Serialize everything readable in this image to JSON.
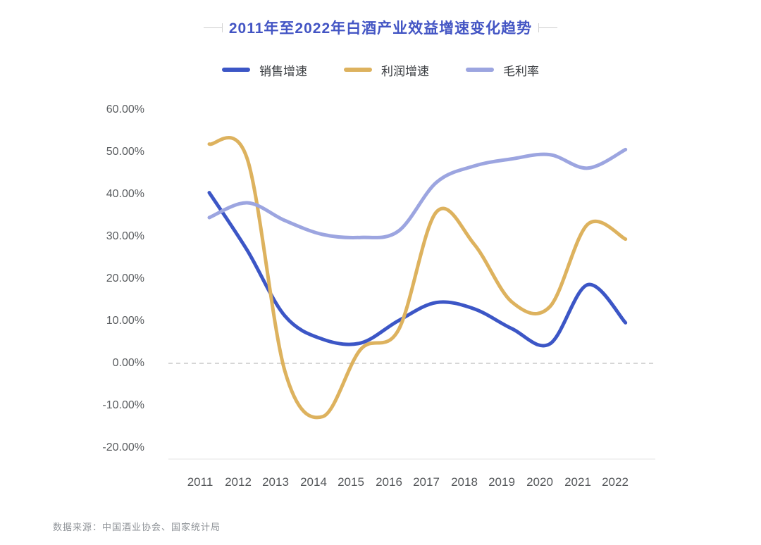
{
  "header": {
    "title": "2011年至2022年白酒产业效益增速变化趋势"
  },
  "chart_data": {
    "type": "line",
    "title": "2011年至2022年白酒产业效益增速变化趋势",
    "categories": [
      "2011",
      "2012",
      "2013",
      "2014",
      "2015",
      "2016",
      "2017",
      "2018",
      "2019",
      "2020",
      "2021",
      "2022"
    ],
    "series": [
      {
        "name": "销售增速",
        "color": "#3c56c6",
        "values": [
          40.4,
          26.8,
          11.2,
          5.7,
          4.8,
          10.1,
          14.4,
          12.9,
          8.2,
          4.6,
          18.6,
          9.6
        ]
      },
      {
        "name": "利润增速",
        "color": "#ddb25e",
        "values": [
          51.9,
          48.5,
          -1.9,
          -12.6,
          3.3,
          7.9,
          35.8,
          28.2,
          14.5,
          13.4,
          32.9,
          29.4
        ]
      },
      {
        "name": "毛利率",
        "color": "#9ca5e0",
        "values": [
          34.5,
          38.0,
          33.8,
          30.5,
          29.8,
          31.3,
          42.8,
          46.7,
          48.4,
          49.4,
          46.2,
          50.6
        ]
      }
    ],
    "xlabel": "",
    "ylabel": "",
    "ylim": [
      -20,
      60
    ],
    "y_tick_labels": [
      "60.00%",
      "50.00%",
      "40.00%",
      "30.00%",
      "20.00%",
      "10.00%",
      "0.00%",
      "-10.00%",
      "-20.00%"
    ],
    "grid": "zero-line-dashed-only",
    "legend_position": "top-center",
    "line_style": "smooth-spline",
    "zero_line_color": "#c9c9c9",
    "baseline_color": "#e4e4e4",
    "title_color": "#4355c4"
  },
  "footer": {
    "source_note": "数据来源：中国酒业协会、国家统计局"
  }
}
